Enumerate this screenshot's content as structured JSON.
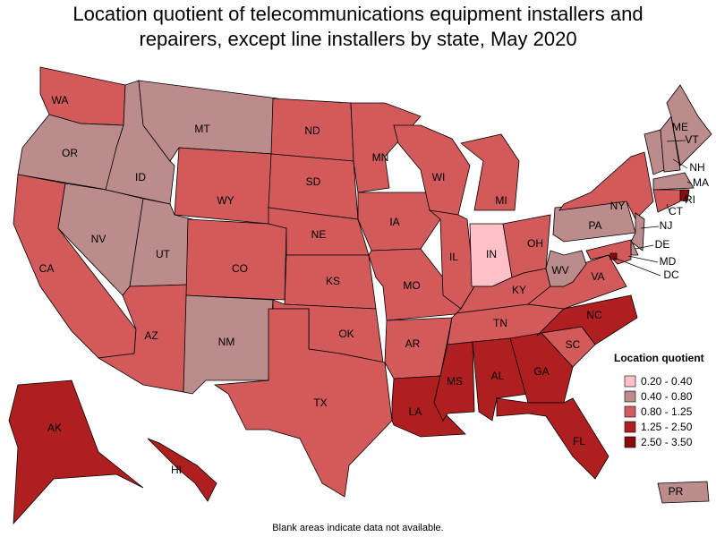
{
  "title": "Location quotient of telecommunications equipment installers and repairers, except line installers by state, May 2020",
  "legend": {
    "title": "Location quotient",
    "items": [
      {
        "label": "0.20 - 0.40",
        "color": "#ffc0c8"
      },
      {
        "label": "0.40 - 0.80",
        "color": "#bc8c8c"
      },
      {
        "label": "0.80 - 1.25",
        "color": "#d35a5a"
      },
      {
        "label": "1.25 - 2.50",
        "color": "#b01f1f"
      },
      {
        "label": "2.50 - 3.50",
        "color": "#8b0a0a"
      }
    ]
  },
  "states": [
    {
      "label": "WA",
      "color": "#d35a5a"
    },
    {
      "label": "OR",
      "color": "#bc8c8c"
    },
    {
      "label": "CA",
      "color": "#d35a5a"
    },
    {
      "label": "ID",
      "color": "#bc8c8c"
    },
    {
      "label": "NV",
      "color": "#bc8c8c"
    },
    {
      "label": "MT",
      "color": "#bc8c8c"
    },
    {
      "label": "WY",
      "color": "#d35a5a"
    },
    {
      "label": "UT",
      "color": "#bc8c8c"
    },
    {
      "label": "AZ",
      "color": "#d35a5a"
    },
    {
      "label": "CO",
      "color": "#d35a5a"
    },
    {
      "label": "NM",
      "color": "#bc8c8c"
    },
    {
      "label": "ND",
      "color": "#d35a5a"
    },
    {
      "label": "SD",
      "color": "#d35a5a"
    },
    {
      "label": "NE",
      "color": "#d35a5a"
    },
    {
      "label": "KS",
      "color": "#d35a5a"
    },
    {
      "label": "OK",
      "color": "#d35a5a"
    },
    {
      "label": "TX",
      "color": "#d35a5a"
    },
    {
      "label": "MN",
      "color": "#d35a5a"
    },
    {
      "label": "IA",
      "color": "#d35a5a"
    },
    {
      "label": "MO",
      "color": "#d35a5a"
    },
    {
      "label": "AR",
      "color": "#d35a5a"
    },
    {
      "label": "LA",
      "color": "#b01f1f"
    },
    {
      "label": "WI",
      "color": "#d35a5a"
    },
    {
      "label": "IL",
      "color": "#d35a5a"
    },
    {
      "label": "MI",
      "color": "#d35a5a"
    },
    {
      "label": "IN",
      "color": "#ffc0c8"
    },
    {
      "label": "OH",
      "color": "#d35a5a"
    },
    {
      "label": "KY",
      "color": "#d35a5a"
    },
    {
      "label": "TN",
      "color": "#d35a5a"
    },
    {
      "label": "MS",
      "color": "#b01f1f"
    },
    {
      "label": "AL",
      "color": "#b01f1f"
    },
    {
      "label": "GA",
      "color": "#b01f1f"
    },
    {
      "label": "FL",
      "color": "#b01f1f"
    },
    {
      "label": "SC",
      "color": "#d35a5a"
    },
    {
      "label": "NC",
      "color": "#b01f1f"
    },
    {
      "label": "VA",
      "color": "#d35a5a"
    },
    {
      "label": "WV",
      "color": "#bc8c8c"
    },
    {
      "label": "PA",
      "color": "#bc8c8c"
    },
    {
      "label": "NY",
      "color": "#d35a5a"
    },
    {
      "label": "VT",
      "color": "#bc8c8c"
    },
    {
      "label": "NH",
      "color": "#bc8c8c"
    },
    {
      "label": "ME",
      "color": "#bc8c8c"
    },
    {
      "label": "MA",
      "color": "#bc8c8c"
    },
    {
      "label": "RI",
      "color": "#8b0a0a"
    },
    {
      "label": "CT",
      "color": "#d35a5a"
    },
    {
      "label": "NJ",
      "color": "#bc8c8c"
    },
    {
      "label": "DE",
      "color": "#bc8c8c"
    },
    {
      "label": "MD",
      "color": "#d35a5a"
    },
    {
      "label": "DC",
      "color": "#8b0a0a"
    },
    {
      "label": "AK",
      "color": "#b01f1f"
    },
    {
      "label": "HI",
      "color": "#b01f1f"
    },
    {
      "label": "PR",
      "color": "#bc8c8c"
    }
  ],
  "note": "Blank areas indicate data not available."
}
